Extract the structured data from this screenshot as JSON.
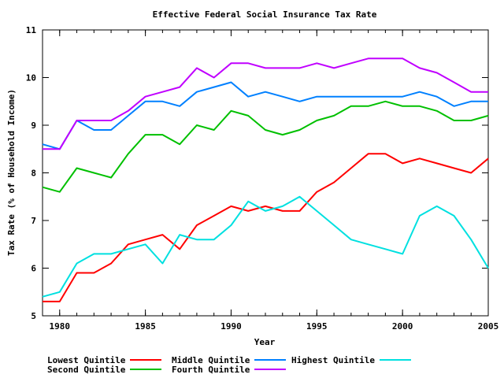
{
  "chart_data": {
    "type": "line",
    "title": "Effective Federal Social Insurance Tax Rate",
    "xlabel": "Year",
    "ylabel": "Tax Rate (% of Household Income)",
    "xlim": [
      1979,
      2005
    ],
    "ylim": [
      5,
      11
    ],
    "xticks": [
      1980,
      1985,
      1990,
      1995,
      2000,
      2005
    ],
    "yticks": [
      5,
      6,
      7,
      8,
      9,
      10,
      11
    ],
    "legend_position": "bottom",
    "grid": false,
    "x": [
      1979,
      1980,
      1981,
      1982,
      1983,
      1984,
      1985,
      1986,
      1987,
      1988,
      1989,
      1990,
      1991,
      1992,
      1993,
      1994,
      1995,
      1996,
      1997,
      1998,
      1999,
      2000,
      2001,
      2002,
      2003,
      2004,
      2005
    ],
    "series": [
      {
        "name": "Lowest Quintile",
        "color": "#ff0000",
        "values": [
          5.3,
          5.3,
          5.9,
          5.9,
          6.1,
          6.5,
          6.6,
          6.7,
          6.4,
          6.9,
          7.1,
          7.3,
          7.2,
          7.3,
          7.2,
          7.2,
          7.6,
          7.8,
          8.1,
          8.4,
          8.4,
          8.2,
          8.3,
          8.2,
          8.1,
          8.0,
          8.3
        ]
      },
      {
        "name": "Second Quintile",
        "color": "#00c000",
        "values": [
          7.7,
          7.6,
          8.1,
          8.0,
          7.9,
          8.4,
          8.8,
          8.8,
          8.6,
          9.0,
          8.9,
          9.3,
          9.2,
          8.9,
          8.8,
          8.9,
          9.1,
          9.2,
          9.4,
          9.4,
          9.5,
          9.4,
          9.4,
          9.3,
          9.1,
          9.1,
          9.2
        ]
      },
      {
        "name": "Middle Quintile",
        "color": "#0080ff",
        "values": [
          8.6,
          8.5,
          9.1,
          8.9,
          8.9,
          9.2,
          9.5,
          9.5,
          9.4,
          9.7,
          9.8,
          9.9,
          9.6,
          9.7,
          9.6,
          9.5,
          9.6,
          9.6,
          9.6,
          9.6,
          9.6,
          9.6,
          9.7,
          9.6,
          9.4,
          9.5,
          9.5
        ]
      },
      {
        "name": "Fourth Quintile",
        "color": "#c000ff",
        "values": [
          8.5,
          8.5,
          9.1,
          9.1,
          9.1,
          9.3,
          9.6,
          9.7,
          9.8,
          10.2,
          10.0,
          10.3,
          10.3,
          10.2,
          10.2,
          10.2,
          10.3,
          10.2,
          10.3,
          10.4,
          10.4,
          10.4,
          10.2,
          10.1,
          9.9,
          9.7,
          9.7
        ]
      },
      {
        "name": "Highest Quintile",
        "color": "#00e0e0",
        "values": [
          5.4,
          5.5,
          6.1,
          6.3,
          6.3,
          6.4,
          6.5,
          6.1,
          6.7,
          6.6,
          6.6,
          6.9,
          7.4,
          7.2,
          7.3,
          7.5,
          7.2,
          6.9,
          6.6,
          6.5,
          6.4,
          6.3,
          7.1,
          7.3,
          7.1,
          6.6,
          6.0
        ]
      }
    ]
  }
}
